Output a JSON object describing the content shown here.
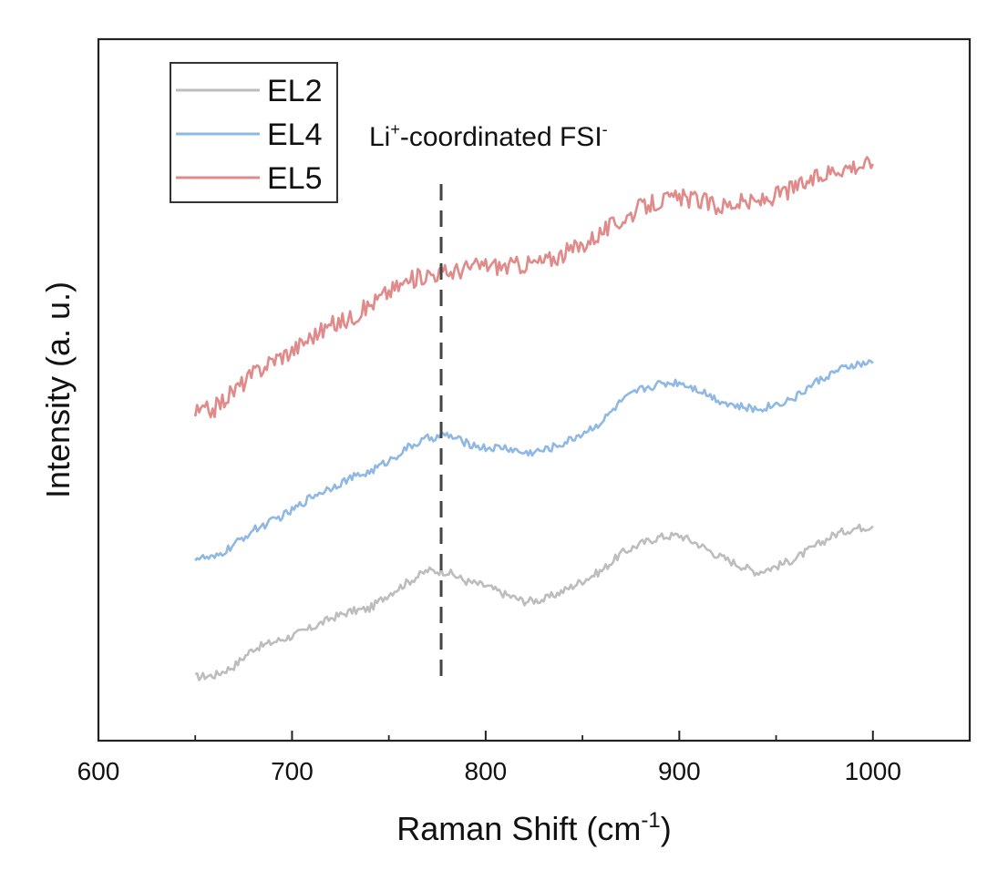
{
  "chart_data": {
    "type": "line",
    "xlabel": "Raman Shift (cm",
    "xlabel_sup": "-1",
    "xlabel_end": ")",
    "ylabel": "Intensity (a. u.)",
    "xlim": [
      600,
      1050
    ],
    "ylim": [
      0,
      100
    ],
    "xticks": [
      600,
      700,
      800,
      900,
      1000
    ],
    "minor_ticks": [
      650,
      750,
      850,
      950
    ],
    "y_tick_labels": false,
    "grid": false,
    "legend_position": "top-left",
    "annotation": {
      "text_main": "Li",
      "text_sup1": "+",
      "text_mid": "-coordinated FSI",
      "text_sup2": "-",
      "x": 777,
      "line_style": "dashed",
      "line_color": "#444444"
    },
    "x": [
      650,
      660,
      670,
      680,
      690,
      700,
      710,
      720,
      730,
      740,
      750,
      760,
      770,
      780,
      790,
      800,
      810,
      820,
      830,
      840,
      850,
      860,
      870,
      880,
      890,
      900,
      910,
      920,
      930,
      940,
      950,
      960,
      970,
      980,
      990,
      1000
    ],
    "series": [
      {
        "name": "EL2",
        "color": "#bdbdbd",
        "values": [
          5.1,
          5.4,
          7.0,
          10.1,
          11.2,
          12.3,
          13.7,
          15.4,
          16.6,
          17.1,
          19.7,
          21.8,
          23.8,
          23.6,
          21.9,
          21.1,
          19.6,
          18.4,
          18.7,
          20.2,
          22.0,
          23.8,
          26.8,
          28.5,
          29.7,
          30.0,
          28.4,
          26.4,
          24.9,
          23.5,
          24.5,
          25.9,
          28.0,
          30.1,
          31.2,
          31.6
        ]
      },
      {
        "name": "EL4",
        "color": "#8fb8e4",
        "values": [
          26.1,
          25.9,
          28.3,
          30.9,
          32.5,
          34.3,
          36.8,
          38.4,
          40.0,
          41.1,
          43.1,
          45.4,
          47.0,
          47.6,
          46.2,
          45.3,
          45.4,
          44.4,
          44.9,
          46.1,
          47.9,
          49.9,
          53.5,
          55.6,
          56.6,
          56.9,
          55.6,
          53.8,
          52.6,
          52.1,
          53.0,
          54.2,
          56.8,
          58.6,
          59.9,
          60.2
        ]
      },
      {
        "name": "EL5",
        "color": "#e08a8a",
        "values": [
          51.4,
          52.3,
          55.4,
          58.3,
          60.8,
          62.4,
          64.9,
          66.8,
          68.1,
          70.4,
          72.8,
          74.6,
          75.9,
          76.1,
          76.9,
          77.5,
          77.2,
          77.6,
          78.0,
          79.4,
          81.0,
          83.3,
          85.3,
          87.5,
          88.7,
          89.2,
          88.9,
          87.7,
          88.4,
          88.4,
          89.7,
          91.1,
          92.5,
          94.3,
          94.9,
          95.2
        ]
      }
    ]
  }
}
